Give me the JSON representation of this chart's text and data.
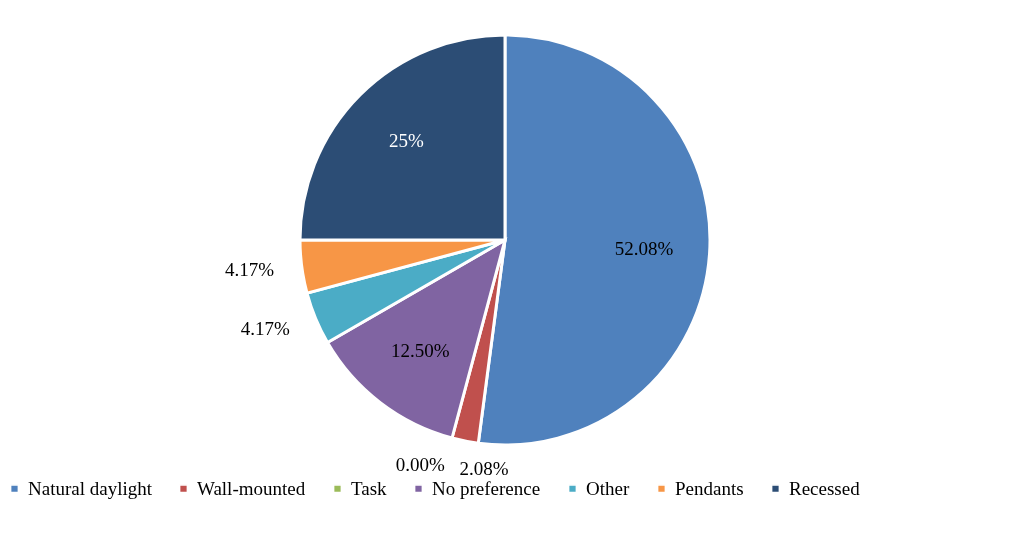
{
  "chart_data": {
    "type": "pie",
    "categories": [
      "Natural daylight",
      "Wall-mounted",
      "Task",
      "No preference",
      "Other",
      "Pendants",
      "Recessed"
    ],
    "values": [
      52.08,
      2.08,
      0.0,
      12.5,
      4.17,
      4.17,
      25
    ],
    "value_labels": [
      "52.08%",
      "2.08%",
      "0.00%",
      "12.50%",
      "4.17%",
      "4.17%",
      "25%"
    ],
    "colors": [
      "#4f81bd",
      "#c0504d",
      "#9bbb59",
      "#8064a2",
      "#4bacc6",
      "#f79646",
      "#2c4d75"
    ],
    "legend": "bottom"
  }
}
